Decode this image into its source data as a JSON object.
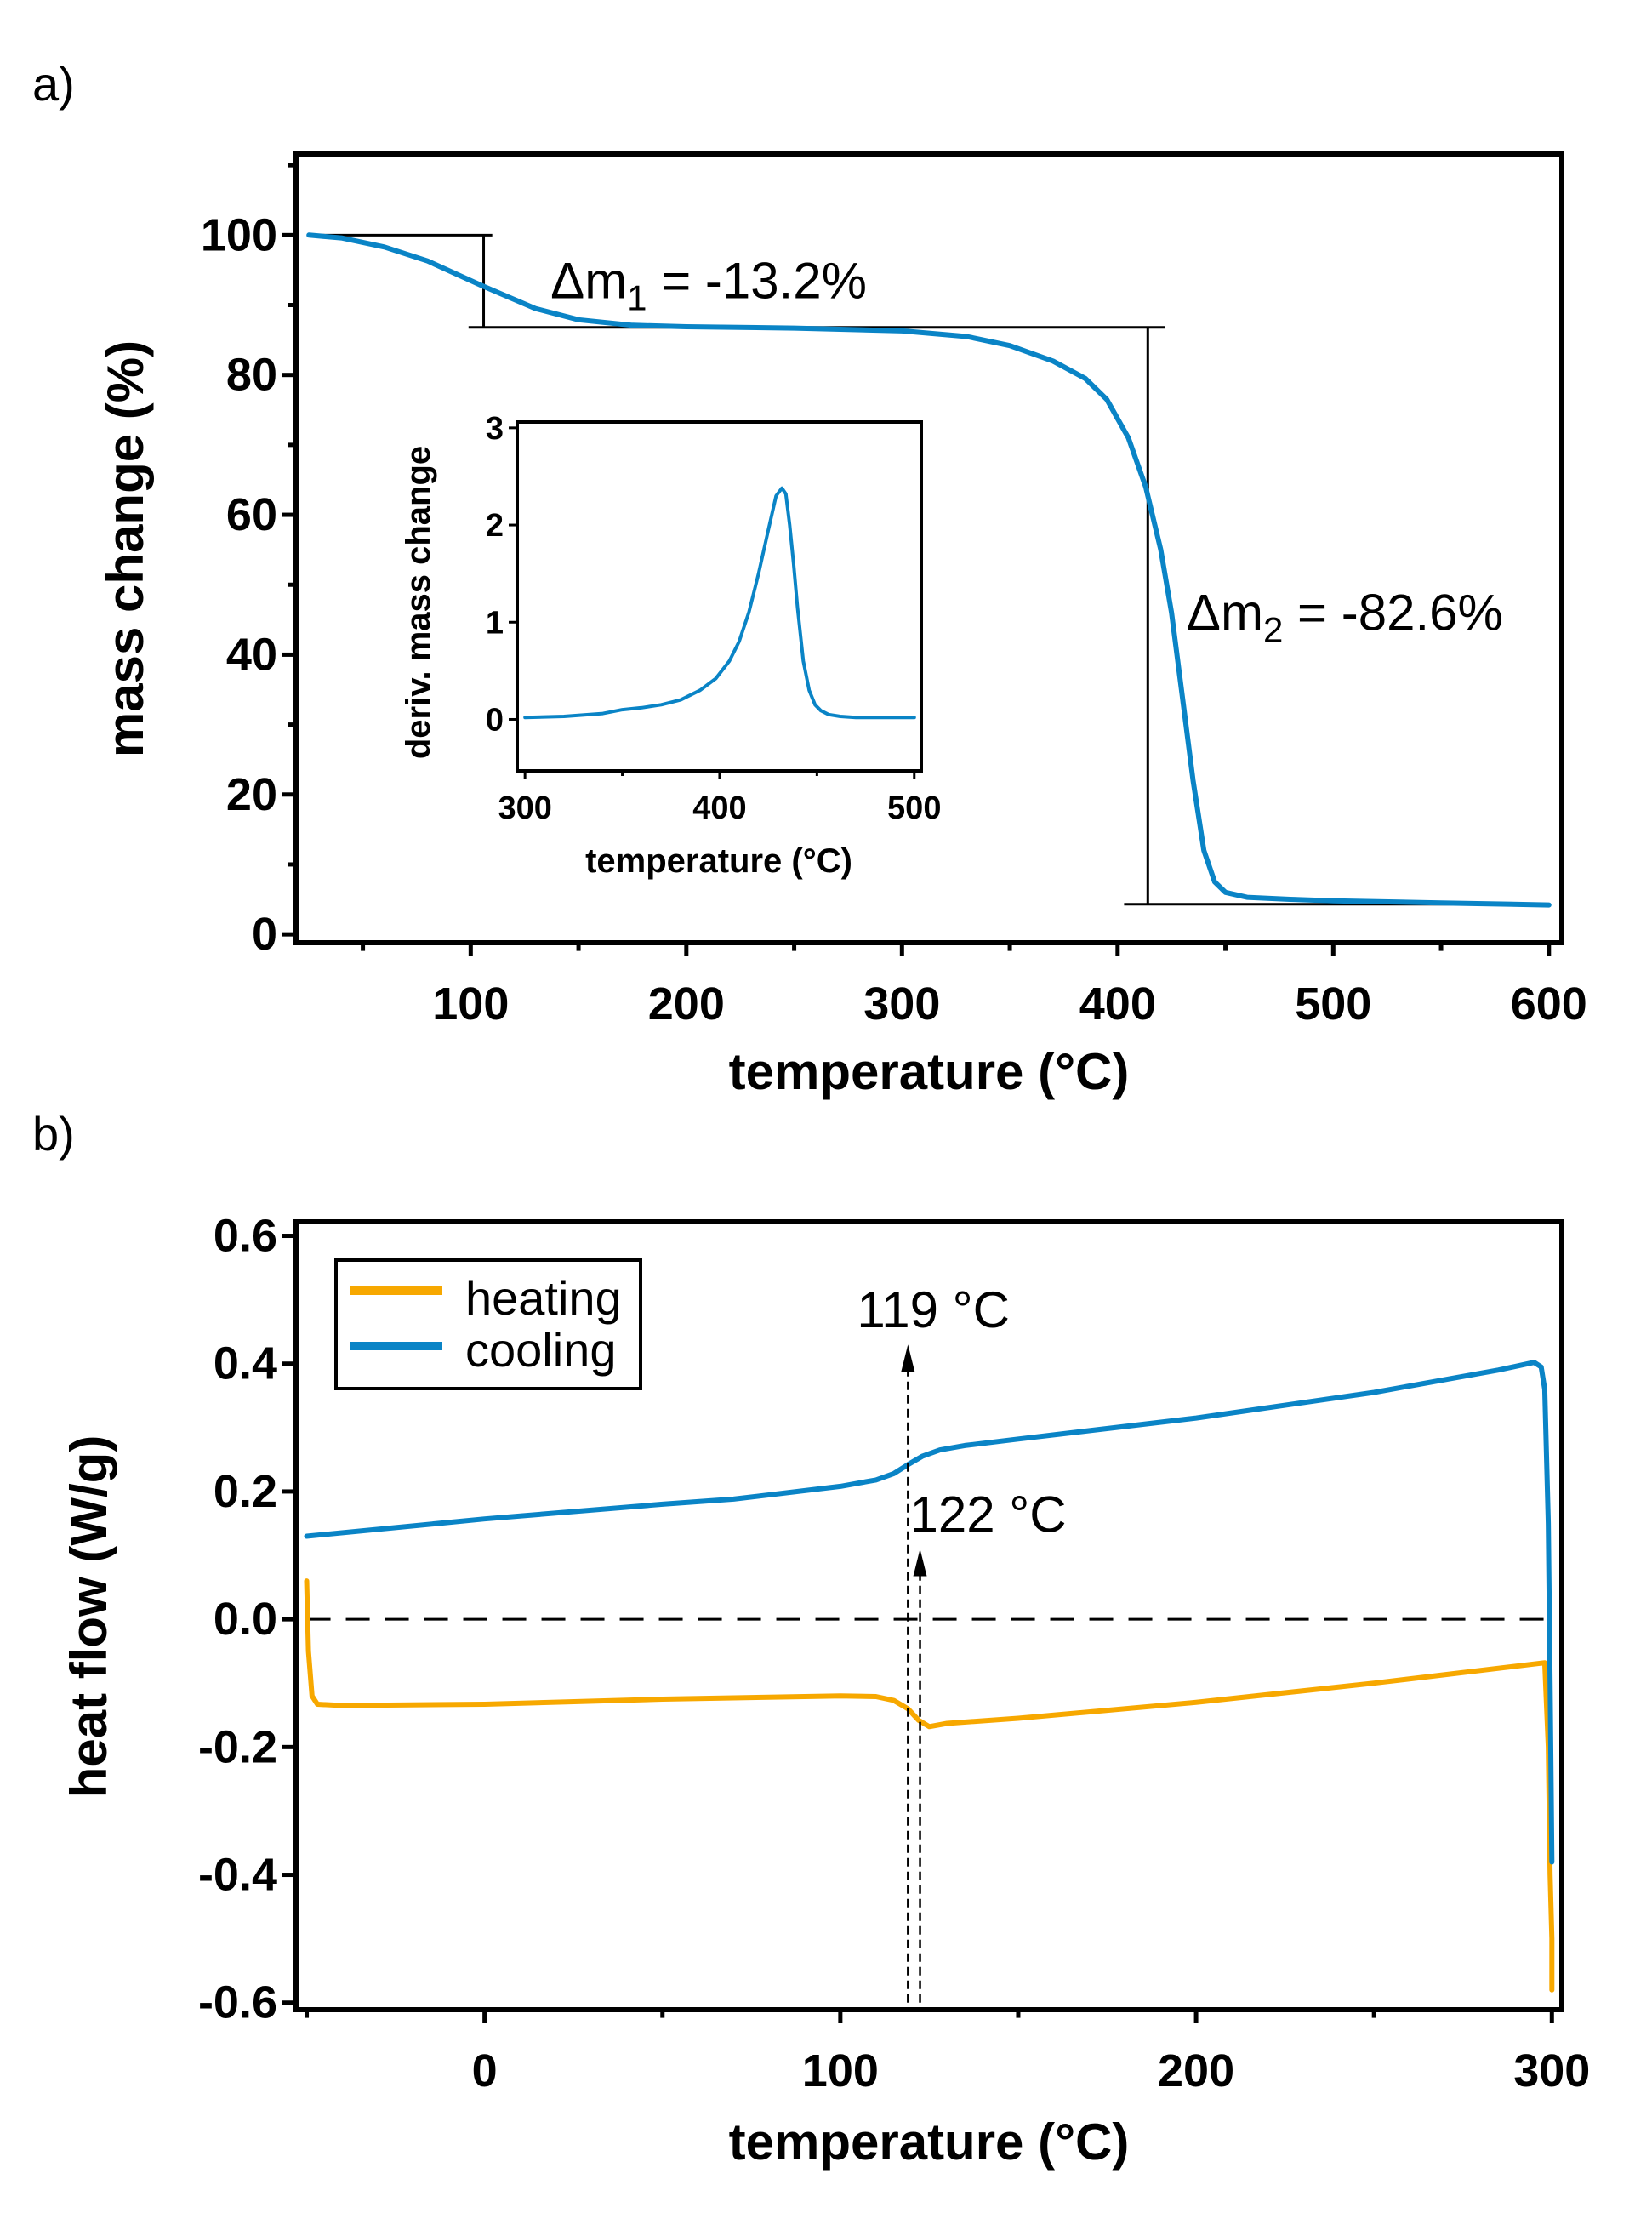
{
  "colors": {
    "blue": "#0a84c6",
    "orange": "#f7a800",
    "axis": "#000000"
  },
  "chart_data": [
    {
      "panel_label": "a)",
      "type": "line",
      "xlabel": "temperature (°C)",
      "ylabel": "mass change (%)",
      "xlim": [
        19,
        606
      ],
      "ylim": [
        -1.2,
        111.6
      ],
      "xticks": [
        100,
        200,
        300,
        400,
        500,
        600
      ],
      "yticks": [
        0,
        20,
        40,
        60,
        80,
        100
      ],
      "grid": false,
      "series": [
        {
          "color": "#0a84c6",
          "x": [
            25,
            40,
            60,
            80,
            105,
            130,
            150,
            175,
            200,
            250,
            300,
            330,
            350,
            370,
            385,
            395,
            405,
            413,
            420,
            425,
            430,
            435,
            440,
            445,
            450,
            460,
            480,
            500,
            550,
            600
          ],
          "y": [
            100,
            99.6,
            98.3,
            96.3,
            92.8,
            89.5,
            87.9,
            87.1,
            86.9,
            86.7,
            86.3,
            85.5,
            84.2,
            82,
            79.5,
            76.5,
            71,
            64,
            55,
            46,
            34,
            22,
            12,
            7.5,
            6,
            5.3,
            5,
            4.8,
            4.5,
            4.2
          ]
        }
      ],
      "annotations": [
        {
          "text_main": "Δm",
          "text_sub": "1",
          "text_rest": " = -13.2%",
          "x": 137,
          "y": 91
        },
        {
          "text_main": "Δm",
          "text_sub": "2",
          "text_rest": " = -82.6%",
          "x": 432,
          "y": 43.5
        }
      ],
      "guide_lines": [
        {
          "x1": 25,
          "y1": 100,
          "x2": 110,
          "y2": 100
        },
        {
          "x1": 106,
          "y1": 100,
          "x2": 106,
          "y2": 86.8
        },
        {
          "x1": 99,
          "y1": 86.8,
          "x2": 422,
          "y2": 86.8
        },
        {
          "x1": 414,
          "y1": 86.8,
          "x2": 414,
          "y2": 4.3
        },
        {
          "x1": 403,
          "y1": 4.3,
          "x2": 600,
          "y2": 4.3
        }
      ],
      "inset": {
        "type": "line",
        "xlabel": "temperature (°C)",
        "ylabel": "deriv. mass change",
        "xlim": [
          296,
          503.6
        ],
        "ylim": [
          -0.53,
          3.06
        ],
        "xticks": [
          300,
          400,
          500
        ],
        "yticks": [
          0,
          1,
          2,
          3
        ],
        "series": [
          {
            "color": "#0a84c6",
            "x": [
              300,
              320,
              340,
              350,
              360,
              370,
              380,
              390,
              398,
              405,
              410,
              415,
              420,
              425,
              429,
              432,
              434,
              436,
              438,
              440,
              443,
              446,
              449,
              452,
              456,
              462,
              470,
              485,
              500
            ],
            "y": [
              0.02,
              0.03,
              0.06,
              0.1,
              0.12,
              0.15,
              0.2,
              0.3,
              0.42,
              0.6,
              0.8,
              1.1,
              1.5,
              1.95,
              2.3,
              2.38,
              2.32,
              2.0,
              1.6,
              1.15,
              0.6,
              0.3,
              0.15,
              0.09,
              0.05,
              0.03,
              0.02,
              0.02,
              0.02
            ]
          }
        ]
      }
    },
    {
      "panel_label": "b)",
      "type": "line",
      "xlabel": "temperature (°C)",
      "ylabel": "heat flow (W/g)",
      "xlim": [
        -53,
        302.8
      ],
      "ylim": [
        -0.611,
        0.622
      ],
      "xticks": [
        0,
        100,
        200,
        300
      ],
      "yticks": [
        -0.6,
        -0.4,
        -0.2,
        0.0,
        0.2,
        0.4,
        0.6
      ],
      "ytick_labels": [
        "-0.6",
        "-0.4",
        "-0.2",
        "0.0",
        "0.2",
        "0.4",
        "0.6"
      ],
      "grid": false,
      "legend": {
        "position": "top-left",
        "entries": [
          "heating",
          "cooling"
        ]
      },
      "series": [
        {
          "name": "heating",
          "color": "#f7a800",
          "x": [
            -50,
            -49.5,
            -48.5,
            -47,
            -40,
            0,
            50,
            100,
            110,
            115,
            119,
            122,
            125,
            130,
            150,
            200,
            250,
            298,
            299,
            299.5,
            300,
            300
          ],
          "y": [
            0.06,
            -0.05,
            -0.12,
            -0.133,
            -0.135,
            -0.133,
            -0.125,
            -0.12,
            -0.121,
            -0.127,
            -0.14,
            -0.158,
            -0.168,
            -0.163,
            -0.155,
            -0.13,
            -0.1,
            -0.068,
            -0.2,
            -0.4,
            -0.5,
            -0.58
          ]
        },
        {
          "name": "cooling",
          "color": "#0a84c6",
          "x": [
            -50,
            0,
            50,
            70,
            100,
            110,
            115,
            119,
            123,
            128,
            135,
            150,
            200,
            250,
            285,
            295,
            297,
            298,
            299,
            299.5,
            300
          ],
          "y": [
            0.13,
            0.157,
            0.18,
            0.188,
            0.208,
            0.218,
            0.228,
            0.242,
            0.255,
            0.265,
            0.272,
            0.282,
            0.315,
            0.355,
            0.39,
            0.402,
            0.395,
            0.36,
            0.15,
            -0.1,
            -0.38
          ]
        }
      ],
      "reference_line": {
        "y": 0.0,
        "x1": -50,
        "x2": 298,
        "style": "dashed"
      },
      "arrows": [
        {
          "label": "119 °C",
          "x": 119,
          "y_from": -0.6,
          "y_to": 0.43
        },
        {
          "label": "122 °C",
          "x": 122.4,
          "y_from": -0.6,
          "y_to": 0.11
        }
      ]
    }
  ]
}
